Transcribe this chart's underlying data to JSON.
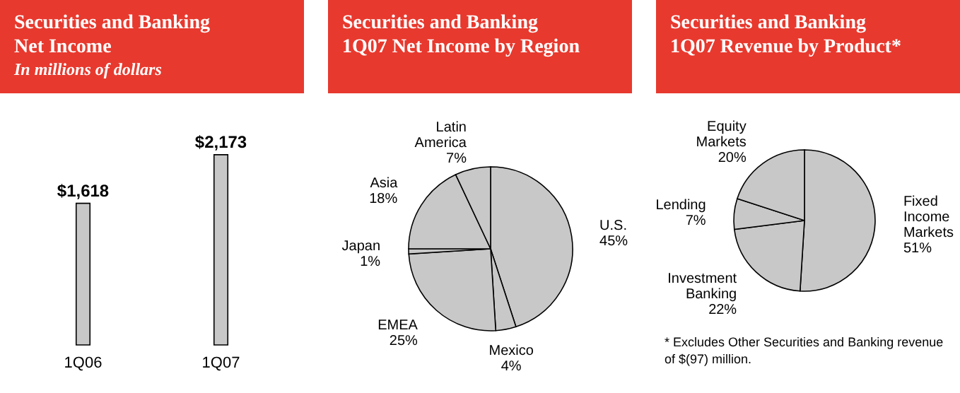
{
  "chart_data": [
    {
      "type": "bar",
      "title": "Securities and Banking\nNet Income",
      "subtitle": "In millions of dollars",
      "categories": [
        "1Q06",
        "1Q07"
      ],
      "values": [
        1618,
        2173
      ],
      "value_labels": [
        "$1,618",
        "$2,173"
      ],
      "color": "#c8c8c8",
      "legend": false
    },
    {
      "type": "pie",
      "title": "Securities and Banking\n1Q07 Net Income by Region",
      "categories": [
        "U.S.",
        "Mexico",
        "EMEA",
        "Japan",
        "Asia",
        "Latin America"
      ],
      "values": [
        45,
        4,
        25,
        1,
        18,
        7
      ],
      "colors": [
        "#c8c8c8",
        "#c8c8c8",
        "#c8c8c8",
        "#c8c8c8",
        "#c8c8c8",
        "#c8c8c8"
      ],
      "legend": false,
      "value_labels": [
        "45%",
        "4%",
        "25%",
        "1%",
        "18%",
        "7%"
      ]
    },
    {
      "type": "pie",
      "title": "Securities and Banking\n1Q07 Revenue by Product*",
      "categories": [
        "Fixed Income Markets",
        "Investment Banking",
        "Lending",
        "Equity Markets"
      ],
      "values": [
        51,
        22,
        7,
        20
      ],
      "colors": [
        "#c8c8c8",
        "#c8c8c8",
        "#c8c8c8",
        "#c8c8c8"
      ],
      "legend": false,
      "value_labels": [
        "51%",
        "22%",
        "7%",
        "20%"
      ],
      "annotations": [
        "* Excludes Other Securities and Banking revenue of $(97) million."
      ]
    }
  ]
}
